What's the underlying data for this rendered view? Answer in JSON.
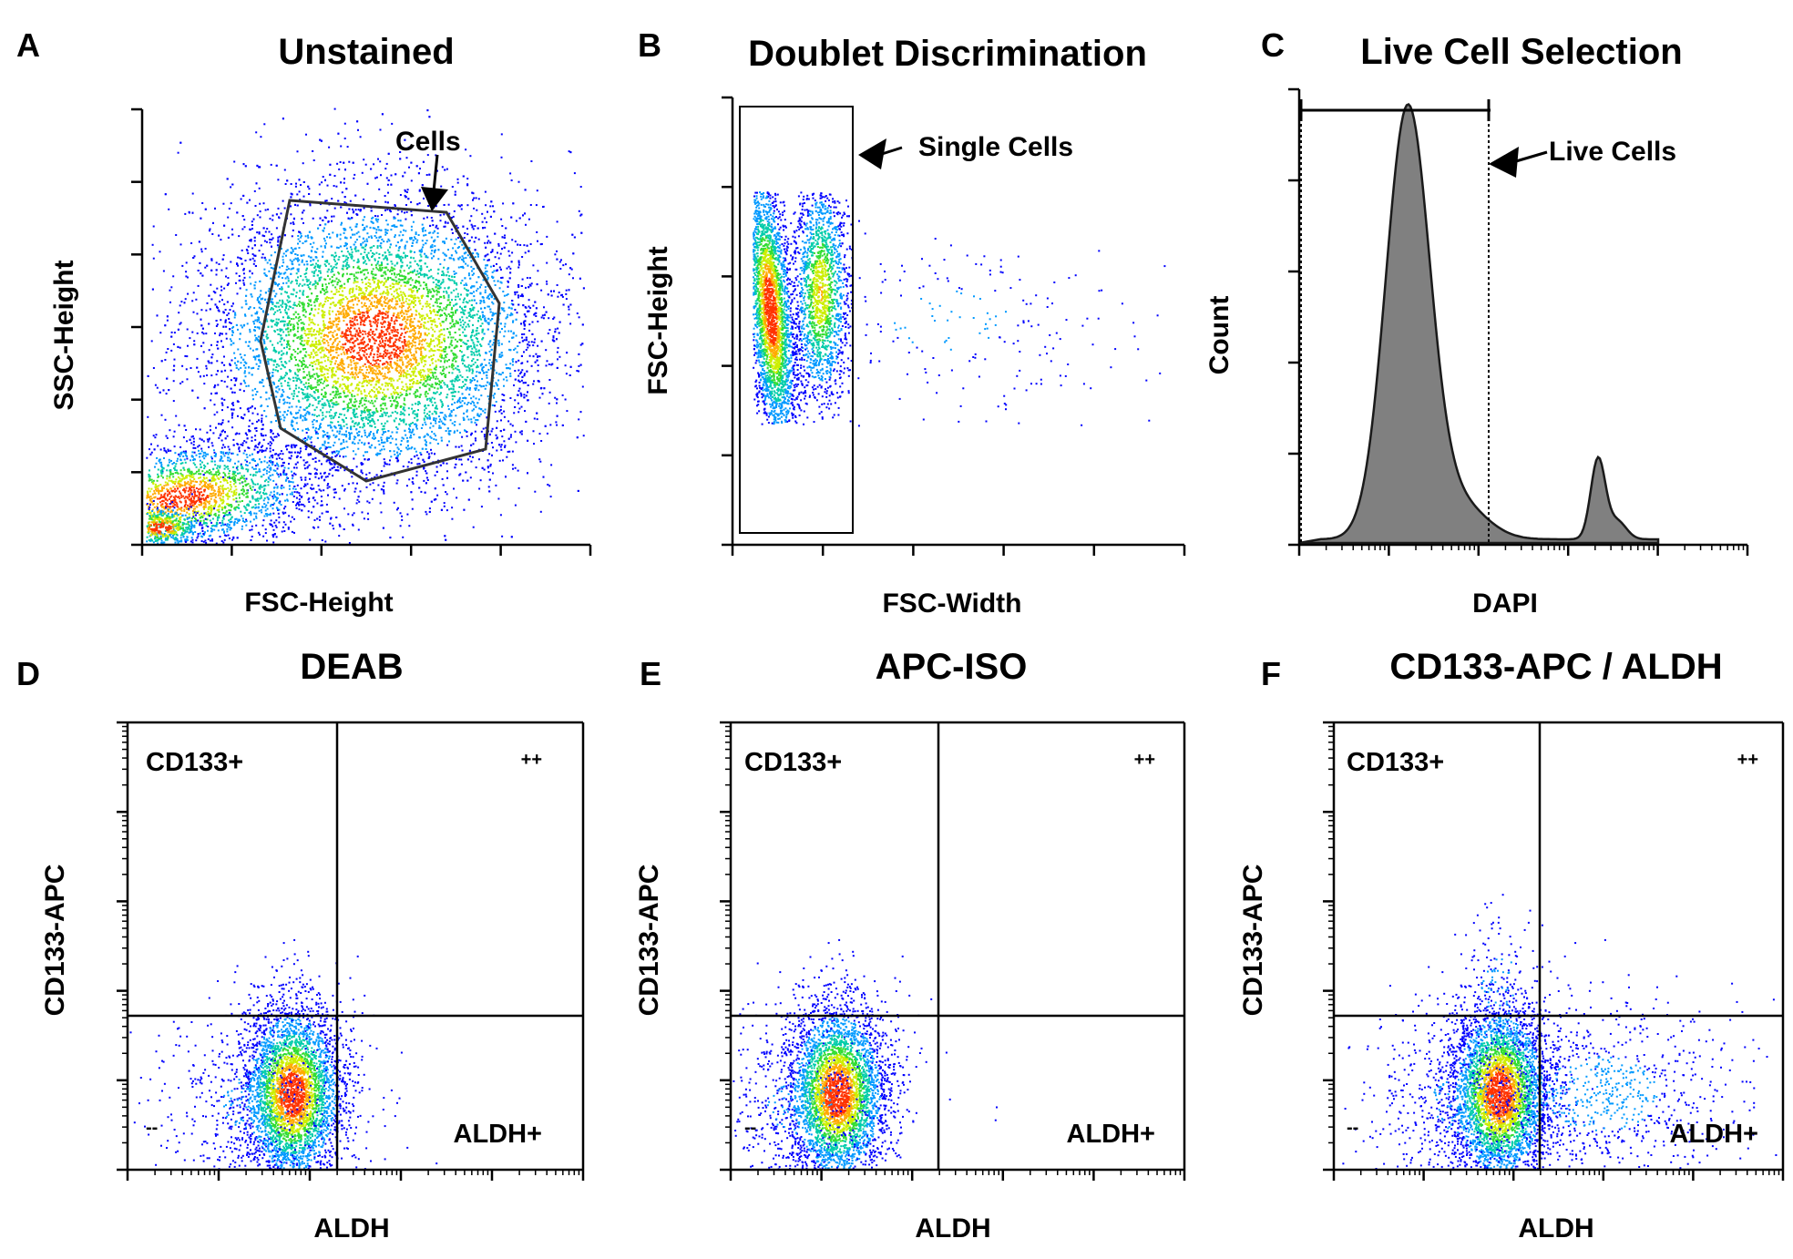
{
  "chart_data": [
    {
      "panel": "A",
      "title": "Unstained",
      "type": "scatter",
      "xlabel": "FSC-Height",
      "ylabel": "SSC-Height",
      "annotations": [
        "Cells"
      ]
    },
    {
      "panel": "B",
      "title": "Doublet Discrimination",
      "type": "scatter",
      "xlabel": "FSC-Width",
      "ylabel": "FSC-Height",
      "annotations": [
        "Single Cells"
      ]
    },
    {
      "panel": "C",
      "title": "Live Cell Selection",
      "type": "area",
      "xlabel": "DAPI",
      "ylabel": "Count",
      "x_scale": "log",
      "annotations": [
        "Live Cells"
      ]
    },
    {
      "panel": "D",
      "title": "DEAB",
      "type": "scatter",
      "xlabel": "ALDH",
      "ylabel": "CD133-APC",
      "x_scale": "log",
      "y_scale": "log",
      "quadrants": {
        "top_left": "CD133+",
        "top_right": "++",
        "bottom_left": "--",
        "bottom_right": "ALDH+"
      }
    },
    {
      "panel": "E",
      "title": "APC-ISO",
      "type": "scatter",
      "xlabel": "ALDH",
      "ylabel": "CD133-APC",
      "x_scale": "log",
      "y_scale": "log",
      "quadrants": {
        "top_left": "CD133+",
        "top_right": "++",
        "bottom_left": "--",
        "bottom_right": "ALDH+"
      }
    },
    {
      "panel": "F",
      "title": "CD133-APC / ALDH",
      "type": "scatter",
      "xlabel": "ALDH",
      "ylabel": "CD133-APC",
      "x_scale": "log",
      "y_scale": "log",
      "quadrants": {
        "top_left": "CD133+",
        "top_right": "++",
        "bottom_left": "--",
        "bottom_right": "ALDH+"
      }
    }
  ],
  "colors": {
    "density_low": "#0000ff",
    "density_mid": "#00cc66",
    "density_high": "#ff3300",
    "histogram_fill": "#808080",
    "gate": "#333333"
  }
}
